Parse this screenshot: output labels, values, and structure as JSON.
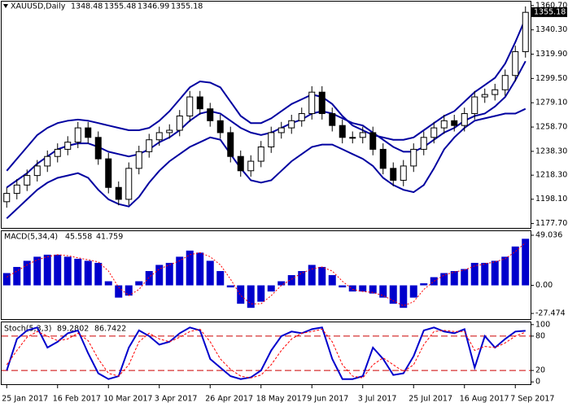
{
  "chart_data": [
    {
      "type": "candlestick",
      "header": {
        "symbol": "XAUUSD,Daily",
        "open": 1348.48,
        "high": 1355.48,
        "low": 1346.99,
        "close": 1355.18
      },
      "categories": [
        "25 Jan 2017",
        null,
        null,
        null,
        null,
        "16 Feb 2017",
        null,
        null,
        null,
        null,
        "10 Mar 2017",
        null,
        null,
        null,
        null,
        "3 Apr 2017",
        null,
        null,
        null,
        null,
        "26 Apr 2017",
        null,
        null,
        null,
        null,
        "18 May 2017",
        null,
        null,
        null,
        null,
        "9 Jun 2017",
        null,
        null,
        null,
        null,
        "3 Jul 2017",
        null,
        null,
        null,
        null,
        "25 Jul 2017",
        null,
        null,
        null,
        null,
        "16 Aug 2017",
        null,
        null,
        null,
        null,
        "7 Sep 2017",
        null
      ],
      "open": [
        1196,
        1203,
        1210,
        1218,
        1226,
        1234,
        1240,
        1246,
        1258,
        1250,
        1232,
        1208,
        1198,
        1224,
        1238,
        1248,
        1254,
        1256,
        1268,
        1284,
        1274,
        1264,
        1254,
        1234,
        1222,
        1230,
        1242,
        1254,
        1258,
        1264,
        1270,
        1288,
        1270,
        1260,
        1250,
        1250,
        1254,
        1240,
        1224,
        1214,
        1226,
        1240,
        1250,
        1258,
        1264,
        1260,
        1270,
        1284,
        1286,
        1290,
        1302,
        1322
      ],
      "high": [
        1208,
        1215,
        1223,
        1231,
        1239,
        1245,
        1251,
        1263,
        1263,
        1255,
        1237,
        1213,
        1229,
        1243,
        1253,
        1259,
        1261,
        1273,
        1289,
        1289,
        1279,
        1269,
        1259,
        1239,
        1235,
        1247,
        1259,
        1263,
        1269,
        1275,
        1293,
        1293,
        1275,
        1265,
        1255,
        1259,
        1259,
        1245,
        1229,
        1231,
        1245,
        1255,
        1263,
        1269,
        1269,
        1275,
        1289,
        1291,
        1295,
        1307,
        1327,
        1360
      ],
      "low": [
        1191,
        1198,
        1205,
        1213,
        1221,
        1229,
        1235,
        1241,
        1245,
        1227,
        1203,
        1193,
        1193,
        1219,
        1233,
        1243,
        1249,
        1251,
        1263,
        1269,
        1259,
        1249,
        1229,
        1217,
        1217,
        1225,
        1237,
        1249,
        1253,
        1259,
        1265,
        1265,
        1255,
        1245,
        1245,
        1245,
        1235,
        1219,
        1209,
        1209,
        1221,
        1235,
        1245,
        1253,
        1255,
        1255,
        1265,
        1279,
        1281,
        1285,
        1297,
        1317
      ],
      "close": [
        1203,
        1210,
        1218,
        1226,
        1234,
        1240,
        1246,
        1258,
        1250,
        1232,
        1208,
        1198,
        1224,
        1238,
        1248,
        1254,
        1256,
        1268,
        1284,
        1274,
        1264,
        1254,
        1234,
        1222,
        1230,
        1242,
        1254,
        1258,
        1264,
        1270,
        1288,
        1270,
        1260,
        1250,
        1250,
        1254,
        1240,
        1224,
        1214,
        1226,
        1240,
        1250,
        1258,
        1264,
        1260,
        1270,
        1284,
        1286,
        1290,
        1302,
        1322,
        1355
      ],
      "color": "#000000",
      "bands": [
        {
          "color": "#0000a0",
          "values": [
            1222,
            1232,
            1242,
            1252,
            1258,
            1262,
            1264,
            1265,
            1264,
            1262,
            1260,
            1258,
            1256,
            1256,
            1258,
            1264,
            1272,
            1282,
            1292,
            1297,
            1296,
            1292,
            1280,
            1268,
            1262,
            1262,
            1266,
            1272,
            1278,
            1282,
            1286,
            1284,
            1278,
            1268,
            1260,
            1256,
            1252,
            1250,
            1248,
            1248,
            1250,
            1256,
            1262,
            1268,
            1272,
            1280,
            1288,
            1294,
            1300,
            1312,
            1330,
            1350
          ]
        },
        {
          "color": "#0000a0",
          "values": [
            1208,
            1214,
            1220,
            1228,
            1234,
            1240,
            1243,
            1245,
            1245,
            1242,
            1238,
            1236,
            1234,
            1236,
            1240,
            1246,
            1250,
            1256,
            1264,
            1270,
            1272,
            1270,
            1264,
            1258,
            1254,
            1252,
            1254,
            1258,
            1262,
            1265,
            1270,
            1272,
            1270,
            1266,
            1262,
            1260,
            1254,
            1248,
            1242,
            1238,
            1238,
            1242,
            1248,
            1254,
            1258,
            1264,
            1268,
            1270,
            1276,
            1284,
            1298,
            1314
          ]
        },
        {
          "color": "#0000a0",
          "values": [
            1182,
            1190,
            1198,
            1206,
            1212,
            1216,
            1218,
            1220,
            1216,
            1206,
            1198,
            1194,
            1192,
            1200,
            1212,
            1222,
            1230,
            1236,
            1242,
            1246,
            1250,
            1248,
            1236,
            1224,
            1214,
            1212,
            1214,
            1222,
            1230,
            1236,
            1242,
            1244,
            1244,
            1240,
            1236,
            1232,
            1226,
            1216,
            1210,
            1206,
            1204,
            1210,
            1224,
            1240,
            1250,
            1258,
            1264,
            1266,
            1268,
            1270,
            1270,
            1274
          ]
        }
      ],
      "ylim": [
        1174,
        1364
      ],
      "yticks": [
        {
          "value": 1360.7,
          "label": "1360.70"
        },
        {
          "value": 1340.3,
          "label": "1340.30"
        },
        {
          "value": 1319.9,
          "label": "1319.90"
        },
        {
          "value": 1299.5,
          "label": "1299.50"
        },
        {
          "value": 1279.1,
          "label": "1279.10"
        },
        {
          "value": 1258.7,
          "label": "1258.70"
        },
        {
          "value": 1238.3,
          "label": "1238.30"
        },
        {
          "value": 1218.3,
          "label": "1218.30"
        },
        {
          "value": 1198.1,
          "label": "1198.10"
        },
        {
          "value": 1177.7,
          "label": "1177.70"
        }
      ]
    },
    {
      "type": "macd",
      "title": "MACD(5,34,4)",
      "series": [
        {
          "color": "#0000cc",
          "values": [
            12,
            18,
            24,
            28,
            30,
            30,
            28,
            26,
            24,
            22,
            4,
            -12,
            -10,
            4,
            14,
            20,
            22,
            28,
            34,
            32,
            24,
            14,
            -2,
            -18,
            -22,
            -16,
            -6,
            4,
            10,
            14,
            20,
            18,
            10,
            -2,
            -6,
            -6,
            -8,
            -12,
            -18,
            -22,
            -12,
            2,
            8,
            12,
            14,
            16,
            22,
            22,
            24,
            28,
            38,
            45.558
          ]
        },
        {
          "color": "#ff0000",
          "values": [
            8,
            14,
            20,
            25,
            28,
            30,
            29,
            27,
            25,
            23,
            14,
            -2,
            -10,
            -4,
            8,
            16,
            20,
            24,
            30,
            32,
            28,
            20,
            6,
            -10,
            -18,
            -18,
            -10,
            0,
            6,
            12,
            16,
            18,
            14,
            4,
            -4,
            -6,
            -7,
            -10,
            -15,
            -20,
            -16,
            -4,
            4,
            10,
            13,
            15,
            19,
            21,
            23,
            26,
            33,
            41.759
          ]
        }
      ],
      "ylim": [
        -33,
        53
      ],
      "yticks": [
        49.036,
        {
          "value": 0,
          "label": "0.00"
        },
        -27.474
      ]
    },
    {
      "type": "line",
      "title": "Stoch(5,3,3)",
      "series": [
        {
          "color": "#0000cc",
          "values": [
            20,
            75,
            90,
            95,
            60,
            70,
            85,
            90,
            50,
            15,
            5,
            10,
            60,
            90,
            80,
            65,
            70,
            85,
            95,
            90,
            40,
            25,
            10,
            5,
            8,
            20,
            55,
            80,
            88,
            85,
            92,
            95,
            40,
            5,
            5,
            10,
            60,
            40,
            12,
            15,
            45,
            90,
            95,
            88,
            85,
            92,
            25,
            80,
            60,
            75,
            88,
            89.2802
          ]
        },
        {
          "color": "#ff0000",
          "values": [
            30,
            55,
            78,
            88,
            80,
            72,
            75,
            85,
            72,
            40,
            15,
            10,
            30,
            70,
            85,
            75,
            70,
            78,
            88,
            92,
            70,
            40,
            22,
            10,
            7,
            12,
            30,
            55,
            75,
            85,
            88,
            92,
            70,
            30,
            10,
            7,
            30,
            42,
            30,
            18,
            30,
            65,
            88,
            90,
            88,
            88,
            55,
            62,
            60,
            68,
            80,
            86.7422
          ]
        }
      ],
      "levels": [
        80,
        20
      ],
      "level_color": "#cc0000",
      "ylim": [
        -4,
        104
      ],
      "yticks": [
        100,
        80,
        20,
        0
      ]
    }
  ]
}
